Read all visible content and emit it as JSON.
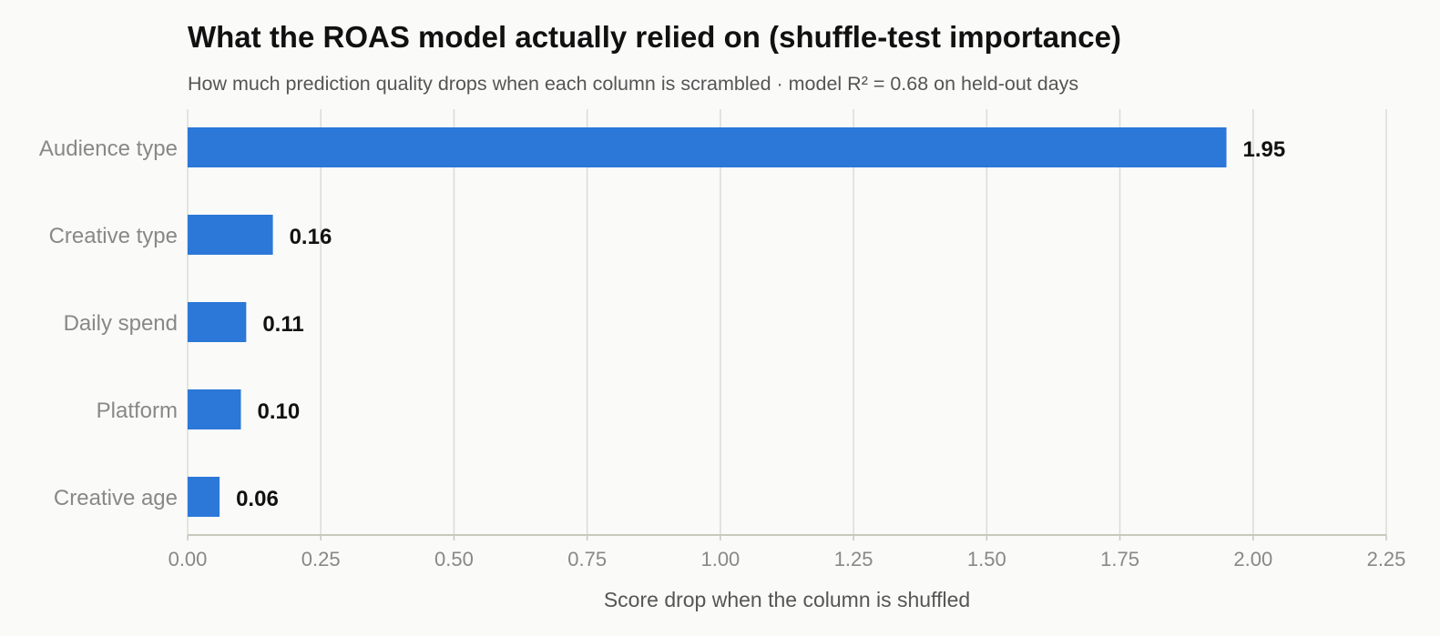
{
  "chart_data": {
    "type": "bar",
    "orientation": "horizontal",
    "title": "What the ROAS model actually relied on (shuffle-test importance)",
    "subtitle": "How much prediction quality drops when each column is scrambled · model R² = 0.68 on held-out days",
    "xlabel": "Score drop when the column is shuffled",
    "ylabel": "",
    "categories": [
      "Audience type",
      "Creative type",
      "Daily spend",
      "Platform",
      "Creative age"
    ],
    "values": [
      1.95,
      0.16,
      0.11,
      0.1,
      0.06
    ],
    "value_labels": [
      "1.95",
      "0.16",
      "0.11",
      "0.10",
      "0.06"
    ],
    "xlim": [
      0,
      2.25
    ],
    "xticks": [
      0,
      0.25,
      0.5,
      0.75,
      1.0,
      1.25,
      1.5,
      1.75,
      2.0,
      2.25
    ],
    "xtick_labels": [
      "0.00",
      "0.25",
      "0.50",
      "0.75",
      "1.00",
      "1.25",
      "1.50",
      "1.75",
      "2.00",
      "2.25"
    ],
    "grid": "vertical",
    "legend": "none",
    "colors": {
      "bar": "#2b78d8",
      "grid": "#dcdcd4",
      "axis": "#c8c8bc",
      "background": "#fafaf9"
    }
  }
}
